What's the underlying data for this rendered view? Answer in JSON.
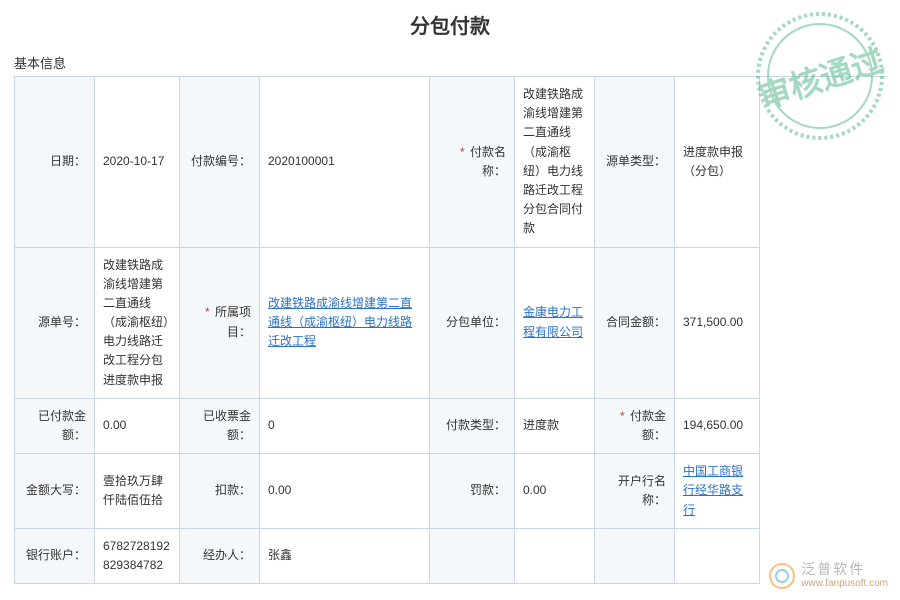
{
  "title": "分包付款",
  "section_basic": "基本信息",
  "stamp_text": "审核通过",
  "watermark": {
    "name": "泛普软件",
    "url": "www.fanpusoft.com"
  },
  "colors": {
    "border": "#c9d6e4",
    "label_bg": "#f4f8fb",
    "link": "#2a72c5",
    "required": "#d33",
    "stamp": "#5bba8f"
  },
  "rows": [
    [
      {
        "label": "日期：",
        "value": "2020-10-17"
      },
      {
        "label": "付款编号：",
        "value": "2020100001"
      },
      {
        "label": "付款名称：",
        "required": true,
        "value": "改建铁路成渝线增建第二直通线（成渝枢纽）电力线路迁改工程分包合同付款"
      },
      {
        "label": "源单类型：",
        "value": "进度款申报（分包）"
      }
    ],
    [
      {
        "label": "源单号：",
        "value": "改建铁路成渝线增建第二直通线（成渝枢纽）电力线路迁改工程分包进度款申报"
      },
      {
        "label": "所属项目：",
        "required": true,
        "value": "改建铁路成渝线增建第二直通线（成渝枢纽）电力线路迁改工程",
        "link": true
      },
      {
        "label": "分包单位：",
        "value": "金康电力工程有限公司",
        "link": true
      },
      {
        "label": "合同金额：",
        "value": "371,500.00"
      }
    ],
    [
      {
        "label": "已付款金额：",
        "value": "0.00"
      },
      {
        "label": "已收票金额：",
        "value": "0"
      },
      {
        "label": "付款类型：",
        "value": "进度款"
      },
      {
        "label": "付款金额：",
        "required": true,
        "value": "194,650.00"
      }
    ],
    [
      {
        "label": "金额大写：",
        "value": "壹拾玖万肆仟陆佰伍拾"
      },
      {
        "label": "扣款：",
        "value": "0.00"
      },
      {
        "label": "罚款：",
        "value": "0.00"
      },
      {
        "label": "开户行名称：",
        "value": "中国工商银行经华路支行",
        "link": true
      }
    ],
    [
      {
        "label": "银行账户：",
        "value": "6782728192829384782"
      },
      {
        "label": "经办人：",
        "value": "张鑫"
      },
      {
        "label": "",
        "value": ""
      },
      {
        "label": "",
        "value": ""
      }
    ]
  ]
}
